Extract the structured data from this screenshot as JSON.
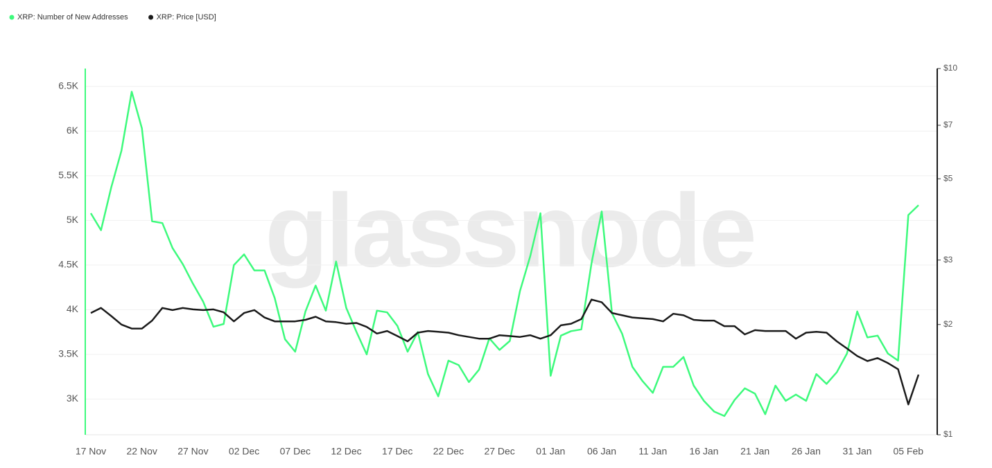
{
  "chart_data": {
    "type": "line",
    "watermark": "glassnode",
    "legend": "top-left",
    "grid": true,
    "categories": [
      "17 Nov",
      null,
      null,
      null,
      null,
      "22 Nov",
      null,
      null,
      null,
      null,
      "27 Nov",
      null,
      null,
      null,
      null,
      "02 Dec",
      null,
      null,
      null,
      null,
      "07 Dec",
      null,
      null,
      null,
      null,
      "12 Dec",
      null,
      null,
      null,
      null,
      "17 Dec",
      null,
      null,
      null,
      null,
      "22 Dec",
      null,
      null,
      null,
      null,
      "27 Dec",
      null,
      null,
      null,
      null,
      "01 Jan",
      null,
      null,
      null,
      null,
      "06 Jan",
      null,
      null,
      null,
      null,
      "11 Jan",
      null,
      null,
      null,
      null,
      "16 Jan",
      null,
      null,
      null,
      null,
      "21 Jan",
      null,
      null,
      null,
      null,
      "26 Jan",
      null,
      null,
      null,
      null,
      "31 Jan",
      null,
      null,
      null,
      null,
      "05 Feb",
      null
    ],
    "series": [
      {
        "name": "XRP: Number of New Addresses",
        "color": "#3dfa7c",
        "axis": "y",
        "values": [
          5080,
          4890,
          5370,
          5780,
          6440,
          6030,
          4990,
          4970,
          4690,
          4510,
          4290,
          4090,
          3810,
          3840,
          4500,
          4620,
          4440,
          4440,
          4130,
          3670,
          3530,
          3980,
          4270,
          3990,
          4540,
          4020,
          3750,
          3500,
          3990,
          3970,
          3820,
          3530,
          3750,
          3280,
          3030,
          3430,
          3380,
          3190,
          3330,
          3680,
          3550,
          3650,
          4210,
          4600,
          5080,
          3260,
          3710,
          3760,
          3780,
          4520,
          5100,
          3960,
          3730,
          3360,
          3200,
          3070,
          3360,
          3360,
          3470,
          3150,
          2980,
          2860,
          2810,
          2990,
          3120,
          3060,
          2830,
          3150,
          2980,
          3050,
          2980,
          3280,
          3170,
          3300,
          3510,
          3980,
          3690,
          3710,
          3510,
          3430,
          5060,
          5170
        ]
      },
      {
        "name": "XRP: Price [USD]",
        "color": "#1a1a1a",
        "axis": "y2",
        "values": [
          2.15,
          2.22,
          2.11,
          2.0,
          1.95,
          1.95,
          2.05,
          2.22,
          2.19,
          2.22,
          2.2,
          2.19,
          2.2,
          2.16,
          2.04,
          2.15,
          2.19,
          2.09,
          2.04,
          2.04,
          2.04,
          2.06,
          2.1,
          2.04,
          2.03,
          2.01,
          2.02,
          1.97,
          1.89,
          1.92,
          1.86,
          1.8,
          1.9,
          1.92,
          1.91,
          1.9,
          1.87,
          1.85,
          1.83,
          1.83,
          1.87,
          1.86,
          1.85,
          1.87,
          1.83,
          1.87,
          1.99,
          2.01,
          2.07,
          2.34,
          2.3,
          2.15,
          2.12,
          2.09,
          2.08,
          2.07,
          2.04,
          2.14,
          2.12,
          2.06,
          2.05,
          2.05,
          1.98,
          1.98,
          1.88,
          1.93,
          1.92,
          1.92,
          1.92,
          1.83,
          1.9,
          1.91,
          1.9,
          1.8,
          1.72,
          1.64,
          1.59,
          1.62,
          1.57,
          1.51,
          1.21,
          1.46
        ]
      }
    ],
    "ylim": [
      2600,
      6700
    ],
    "yticks": [
      {
        "value": 3000,
        "label": "3K"
      },
      {
        "value": 3500,
        "label": "3.5K"
      },
      {
        "value": 4000,
        "label": "4K"
      },
      {
        "value": 4500,
        "label": "4.5K"
      },
      {
        "value": 5000,
        "label": "5K"
      },
      {
        "value": 5500,
        "label": "5.5K"
      },
      {
        "value": 6000,
        "label": "6K"
      },
      {
        "value": 6500,
        "label": "6.5K"
      }
    ],
    "y2scale": "log",
    "y2lim": [
      1,
      10
    ],
    "y2ticks": [
      {
        "value": 1,
        "label": "$1"
      },
      {
        "value": 2,
        "label": "$2"
      },
      {
        "value": 3,
        "label": "$3"
      },
      {
        "value": 5,
        "label": "$5"
      },
      {
        "value": 7,
        "label": "$7"
      },
      {
        "value": 10,
        "label": "$10"
      }
    ]
  }
}
